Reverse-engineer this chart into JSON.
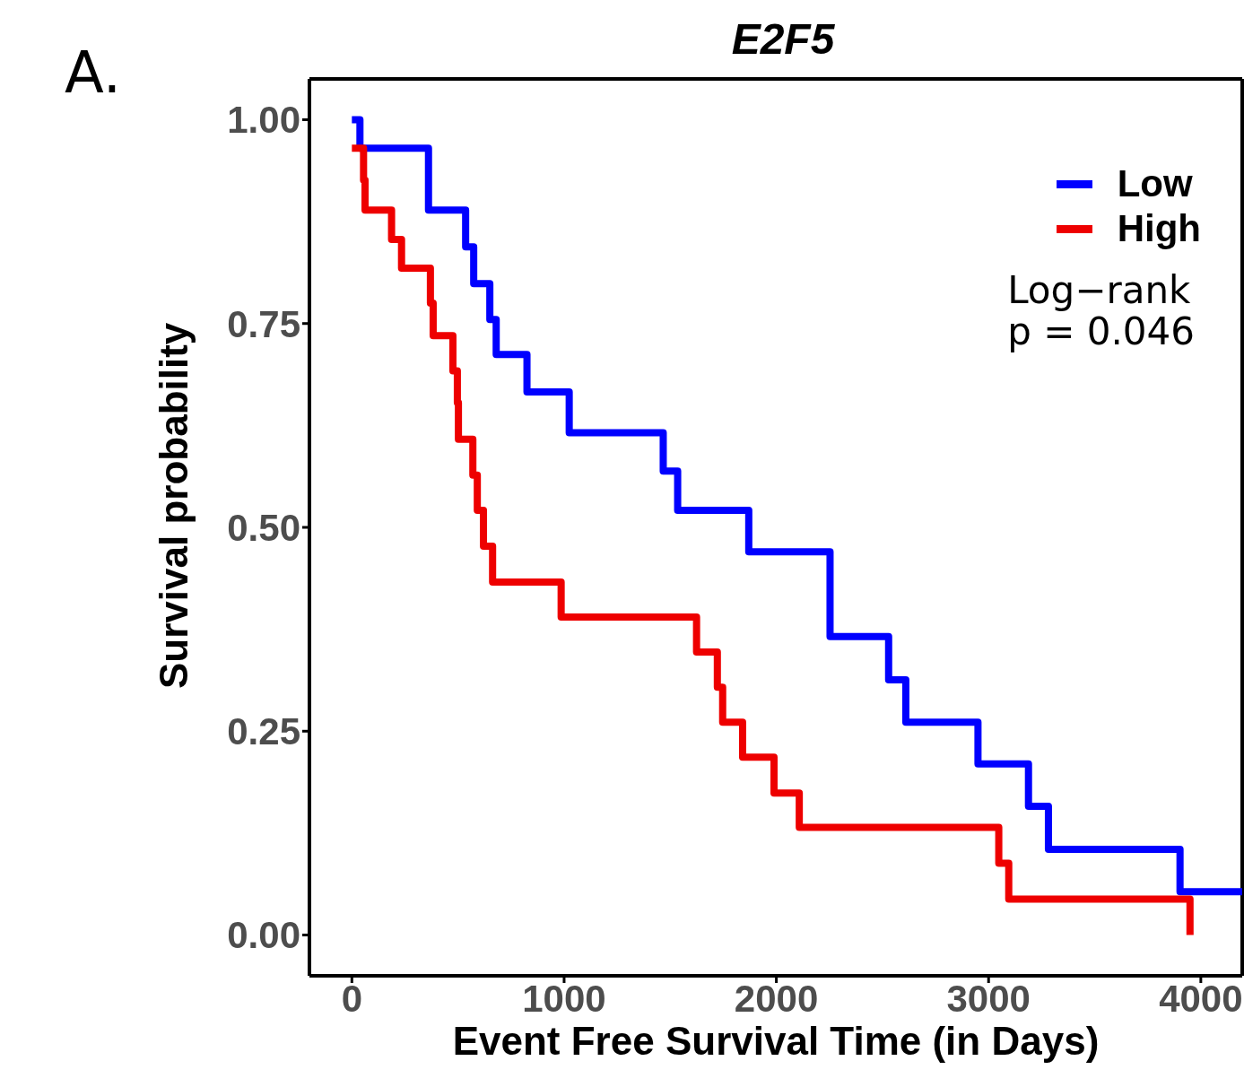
{
  "chart_data": {
    "type": "step",
    "title": "E2F5",
    "xlabel": "Event Free Survival Time (in Days)",
    "ylabel": "Survival probability",
    "annotations": [
      "A.",
      "Log−rank\np = 0.046"
    ],
    "xlim": [
      -200,
      4195
    ],
    "xticks": [
      0,
      1000,
      2000,
      3000,
      4000
    ],
    "ylim": [
      -0.05,
      1.05
    ],
    "yticks": [
      {
        "value": 0,
        "label": "0.00"
      },
      {
        "value": 0.25,
        "label": "0.25"
      },
      {
        "value": 0.5,
        "label": "0.50"
      },
      {
        "value": 0.75,
        "label": "0.75"
      },
      {
        "value": 1,
        "label": "1.00"
      }
    ],
    "grid": false,
    "legend": "top right",
    "line_style": "solid",
    "marker": "none",
    "series": [
      {
        "name": "Low",
        "color": "#0000ff",
        "x": [
          0,
          38,
          361,
          536,
          574,
          650,
          680,
          825,
          1024,
          1467,
          1535,
          1870,
          2253,
          2529,
          2610,
          2950,
          3188,
          3282,
          3902,
          4195
        ],
        "values": [
          1.0,
          0.965,
          0.889,
          0.844,
          0.799,
          0.755,
          0.712,
          0.666,
          0.616,
          0.569,
          0.521,
          0.47,
          0.366,
          0.313,
          0.261,
          0.21,
          0.158,
          0.105,
          0.053,
          0.053
        ]
      },
      {
        "name": "High",
        "color": "#ee0000",
        "x": [
          0,
          55,
          62,
          187,
          234,
          370,
          383,
          476,
          497,
          502,
          570,
          591,
          620,
          663,
          986,
          1624,
          1722,
          1747,
          1841,
          1989,
          2108,
          3048,
          3095,
          3949
        ],
        "values": [
          0.965,
          0.926,
          0.889,
          0.853,
          0.818,
          0.775,
          0.735,
          0.692,
          0.653,
          0.608,
          0.564,
          0.521,
          0.477,
          0.433,
          0.39,
          0.347,
          0.304,
          0.261,
          0.218,
          0.174,
          0.132,
          0.088,
          0.044,
          0.0
        ]
      }
    ]
  }
}
